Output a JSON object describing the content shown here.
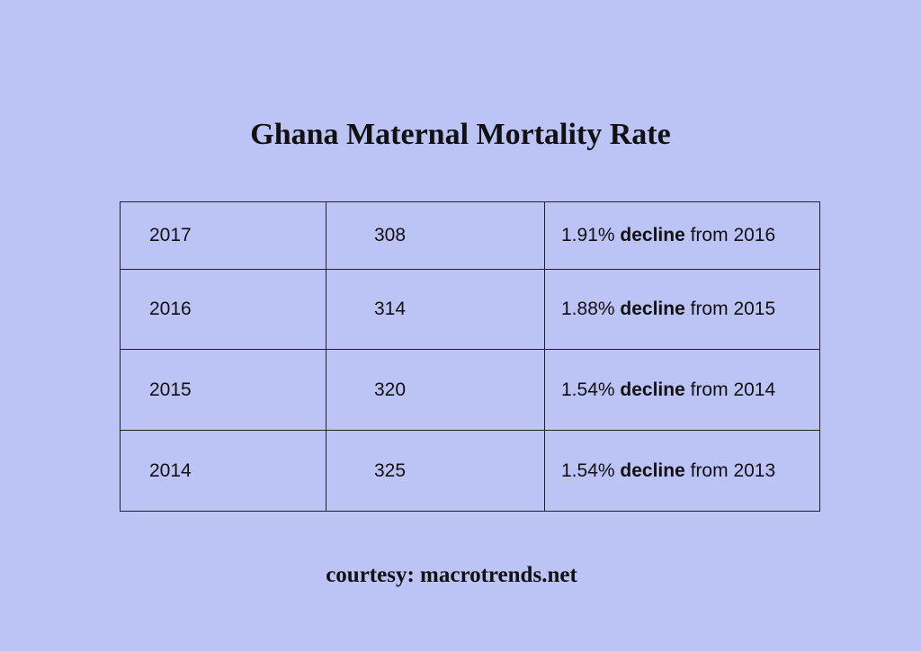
{
  "title": "Ghana Maternal Mortality Rate",
  "table": {
    "rows": [
      {
        "year": "2017",
        "value": "308",
        "pct": "1.91%",
        "keyword": "decline",
        "from": "from 2016"
      },
      {
        "year": "2016",
        "value": "314",
        "pct": "1.88%",
        "keyword": "decline",
        "from": "from 2015"
      },
      {
        "year": "2015",
        "value": "320",
        "pct": "1.54%",
        "keyword": "decline",
        "from": "from 2014"
      },
      {
        "year": "2014",
        "value": "325",
        "pct": "1.54%",
        "keyword": "decline",
        "from": "from 2013"
      }
    ]
  },
  "footer": {
    "courtesy": "courtesy: macrotrends.net"
  },
  "colors": {
    "background": "#bcc3f5",
    "border": "#222222",
    "text": "#111111"
  }
}
